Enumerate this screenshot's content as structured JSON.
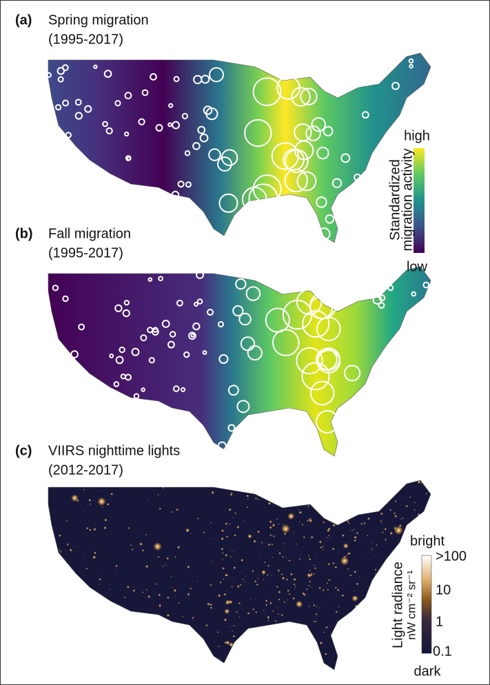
{
  "panels": [
    {
      "label": "(a)",
      "title": "Spring migration",
      "period": "(1995-2017)"
    },
    {
      "label": "(b)",
      "title": "Fall migration",
      "period": "(1995-2017)"
    },
    {
      "label": "(c)",
      "title": "VIIRS nighttime lights",
      "period": "(2012-2017)"
    }
  ],
  "migration_legend": {
    "title_lines": [
      "Standardized",
      "migration activity"
    ],
    "high": "high",
    "low": "low"
  },
  "lights_legend": {
    "title_lines": [
      "Light radiance",
      "nW cm⁻² sr⁻¹"
    ],
    "bright": "bright",
    "dark": "dark",
    "ticks": [
      ">100",
      "10",
      "1",
      "0.1"
    ]
  }
}
